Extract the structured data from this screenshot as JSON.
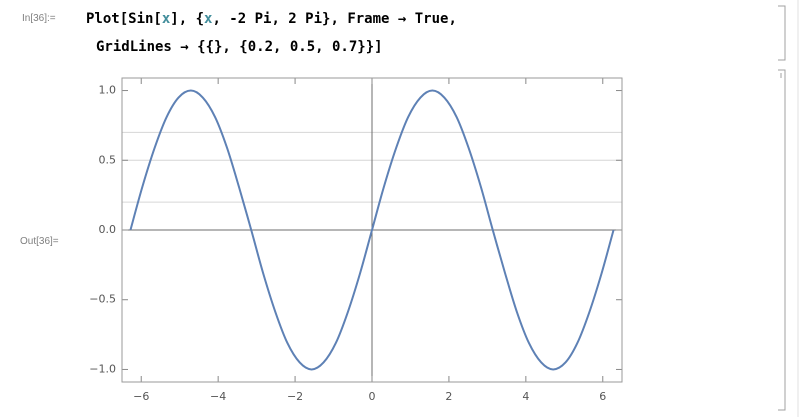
{
  "input": {
    "label": "In[36]:=",
    "lines": [
      [
        {
          "text": "Plot[Sin[",
          "color": "#000000"
        },
        {
          "text": "x",
          "color": "#438e9c"
        },
        {
          "text": "], {",
          "color": "#000000"
        },
        {
          "text": "x",
          "color": "#438e9c"
        },
        {
          "text": ", -2 Pi, 2 Pi}, Frame → True,",
          "color": "#000000"
        }
      ],
      [
        {
          "text": "GridLines → {{}, {0.2, 0.5, 0.7}}]",
          "color": "#000000"
        }
      ]
    ]
  },
  "output": {
    "label": "Out[36]="
  },
  "chart_data": {
    "type": "line",
    "frame": true,
    "xlim": [
      -6.5,
      6.5
    ],
    "ylim": [
      -1.09,
      1.09
    ],
    "xticks": [
      {
        "value": -6,
        "label": "−6"
      },
      {
        "value": -4,
        "label": "−4"
      },
      {
        "value": -2,
        "label": "−2"
      },
      0,
      2,
      4,
      6
    ],
    "yticks": [
      {
        "value": -1,
        "label": "−1.0"
      },
      {
        "value": -0.5,
        "label": "−0.5"
      },
      {
        "value": 0,
        "label": "0.0"
      },
      0.5,
      {
        "value": 1,
        "label": "1.0"
      }
    ],
    "grid_y": [
      0.2,
      0.5,
      0.7
    ],
    "series": [
      {
        "color": "#5e81b5",
        "x": [
          -6.28,
          -5.97,
          -5.65,
          -5.34,
          -5.03,
          -4.71,
          -4.4,
          -4.08,
          -3.77,
          -3.46,
          -3.14,
          -2.83,
          -2.51,
          -2.2,
          -1.88,
          -1.57,
          -1.26,
          -0.94,
          -0.63,
          -0.31,
          0,
          0.31,
          0.63,
          0.94,
          1.26,
          1.57,
          1.88,
          2.2,
          2.51,
          2.83,
          3.14,
          3.46,
          3.77,
          4.08,
          4.4,
          4.71,
          5.03,
          5.34,
          5.65,
          5.97,
          6.28
        ],
        "values": [
          0,
          0.31,
          0.59,
          0.81,
          0.95,
          1,
          0.95,
          0.81,
          0.59,
          0.31,
          0,
          -0.31,
          -0.59,
          -0.81,
          -0.95,
          -1,
          -0.95,
          -0.81,
          -0.59,
          -0.31,
          0,
          0.31,
          0.59,
          0.81,
          0.95,
          1,
          0.95,
          0.81,
          0.59,
          0.31,
          0,
          -0.31,
          -0.59,
          -0.81,
          -0.95,
          -1,
          -0.95,
          -0.81,
          -0.59,
          -0.31,
          0
        ]
      }
    ]
  }
}
